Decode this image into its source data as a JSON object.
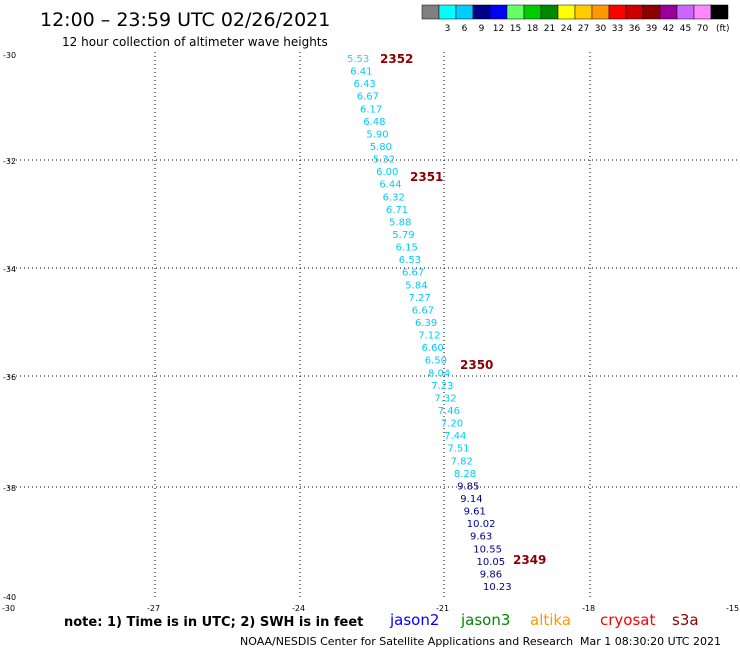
{
  "header": {
    "title": "12:00 – 23:59 UTC 02/26/2021",
    "subtitle": "12 hour collection of altimeter wave heights"
  },
  "legend": {
    "swatches": [
      {
        "color": "#808080",
        "label": ""
      },
      {
        "color": "#00ffff",
        "label": "3"
      },
      {
        "color": "#00ccff",
        "label": "6"
      },
      {
        "color": "#00008b",
        "label": "9"
      },
      {
        "color": "#0000ff",
        "label": "12"
      },
      {
        "color": "#66ff66",
        "label": "15"
      },
      {
        "color": "#00cc00",
        "label": "18"
      },
      {
        "color": "#008800",
        "label": "21"
      },
      {
        "color": "#ffff00",
        "label": "24"
      },
      {
        "color": "#ffcc00",
        "label": "27"
      },
      {
        "color": "#ff9900",
        "label": "30"
      },
      {
        "color": "#ff0000",
        "label": "33"
      },
      {
        "color": "#cc0000",
        "label": "36"
      },
      {
        "color": "#8b0000",
        "label": "39"
      },
      {
        "color": "#990099",
        "label": "42"
      },
      {
        "color": "#cc66ff",
        "label": "45"
      },
      {
        "color": "#ff88ff",
        "label": "70"
      },
      {
        "color": "#000000",
        "label": ""
      }
    ],
    "unit": "(ft)"
  },
  "axes": {
    "lat_labels": [
      "-30",
      "-32",
      "-34",
      "-36",
      "-38",
      "-40"
    ],
    "lon_labels": [
      "-30",
      "-27",
      "-24",
      "-21",
      "-18",
      "-15"
    ]
  },
  "track": {
    "points": [
      {
        "v": "5.53",
        "c": "#33ccff"
      },
      {
        "v": "6.41",
        "c": "#00ccff"
      },
      {
        "v": "6.43",
        "c": "#00ccff"
      },
      {
        "v": "6.67",
        "c": "#00ccff"
      },
      {
        "v": "6.17",
        "c": "#00ccff"
      },
      {
        "v": "6.48",
        "c": "#00ccff"
      },
      {
        "v": "5.90",
        "c": "#00ccff"
      },
      {
        "v": "5.80",
        "c": "#00ccff"
      },
      {
        "v": "5.32",
        "c": "#00ccff"
      },
      {
        "v": "6.00",
        "c": "#00ccff"
      },
      {
        "v": "6.44",
        "c": "#00ccff"
      },
      {
        "v": "6.32",
        "c": "#00ccff"
      },
      {
        "v": "6.71",
        "c": "#00ccff"
      },
      {
        "v": "5.88",
        "c": "#00ccff"
      },
      {
        "v": "5.79",
        "c": "#00ccff"
      },
      {
        "v": "6.15",
        "c": "#00ccff"
      },
      {
        "v": "6.53",
        "c": "#00ccff"
      },
      {
        "v": "6.67",
        "c": "#00ccff"
      },
      {
        "v": "5.84",
        "c": "#00ccff"
      },
      {
        "v": "7.27",
        "c": "#00ccff"
      },
      {
        "v": "6.67",
        "c": "#00ccff"
      },
      {
        "v": "6.39",
        "c": "#00ccff"
      },
      {
        "v": "7.12",
        "c": "#00ccff"
      },
      {
        "v": "6.60",
        "c": "#00ccff"
      },
      {
        "v": "6.50",
        "c": "#00ccff"
      },
      {
        "v": "8.04",
        "c": "#00ccff"
      },
      {
        "v": "7.23",
        "c": "#00ccff"
      },
      {
        "v": "7.32",
        "c": "#00ccff"
      },
      {
        "v": "7.46",
        "c": "#00ccff"
      },
      {
        "v": "7.20",
        "c": "#00ccff"
      },
      {
        "v": "7.44",
        "c": "#00ccff"
      },
      {
        "v": "7.51",
        "c": "#00ccff"
      },
      {
        "v": "7.82",
        "c": "#00ccff"
      },
      {
        "v": "8.28",
        "c": "#00ccff"
      },
      {
        "v": "9.85",
        "c": "#00008b"
      },
      {
        "v": "9.14",
        "c": "#00008b"
      },
      {
        "v": "9.61",
        "c": "#00008b"
      },
      {
        "v": "10.02",
        "c": "#00008b"
      },
      {
        "v": "9.63",
        "c": "#00008b"
      },
      {
        "v": "10.55",
        "c": "#00008b"
      },
      {
        "v": "10.05",
        "c": "#00008b"
      },
      {
        "v": "9.86",
        "c": "#00008b"
      },
      {
        "v": "10.23",
        "c": "#00008b"
      }
    ],
    "times": [
      "2352",
      "2351",
      "2350",
      "2349"
    ]
  },
  "footer": {
    "note": "note: 1) Time is in UTC; 2) SWH is in feet",
    "missions": [
      {
        "name": "jason2",
        "color": "#0000ff"
      },
      {
        "name": "jason3",
        "color": "#008800"
      },
      {
        "name": "altika",
        "color": "#ff9900"
      },
      {
        "name": "cryosat",
        "color": "#ff0000"
      },
      {
        "name": "s3a",
        "color": "#8b0000"
      }
    ],
    "credit": "NOAA/NESDIS Center for Satellite Applications and Research",
    "timestamp": "Mar  1 08:30:20 UTC 2021"
  }
}
